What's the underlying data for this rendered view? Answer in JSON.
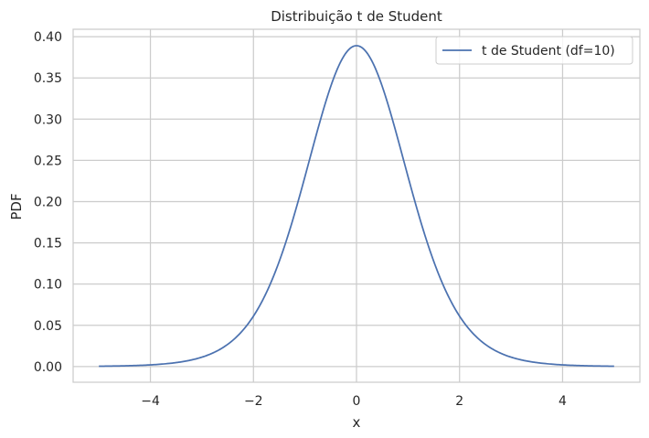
{
  "chart_data": {
    "type": "line",
    "title": "Distribuição t de Student",
    "xlabel": "x",
    "ylabel": "PDF",
    "xlim": [
      -5.5,
      5.5
    ],
    "ylim": [
      -0.019,
      0.409
    ],
    "xticks": [
      -4,
      -2,
      0,
      2,
      4
    ],
    "xtick_labels": [
      "−4",
      "−2",
      "0",
      "2",
      "4"
    ],
    "yticks": [
      0.0,
      0.05,
      0.1,
      0.15,
      0.2,
      0.25,
      0.3,
      0.35,
      0.4
    ],
    "ytick_labels": [
      "0.00",
      "0.05",
      "0.10",
      "0.15",
      "0.20",
      "0.25",
      "0.30",
      "0.35",
      "0.40"
    ],
    "grid": true,
    "legend_position": "top-right",
    "series": [
      {
        "name": "t de Student (df=10)",
        "color": "#4c72b0",
        "df": 10,
        "x": [
          -5,
          -4.5,
          -4,
          -3.5,
          -3,
          -2.5,
          -2,
          -1.5,
          -1,
          -0.5,
          0,
          0.5,
          1,
          1.5,
          2,
          2.5,
          3,
          3.5,
          4,
          4.5,
          5
        ],
        "y": [
          0.0004,
          0.001,
          0.002,
          0.0048,
          0.0114,
          0.0269,
          0.0611,
          0.1274,
          0.2304,
          0.3397,
          0.3891,
          0.3397,
          0.2304,
          0.1274,
          0.0611,
          0.0269,
          0.0114,
          0.0048,
          0.002,
          0.001,
          0.0004
        ]
      }
    ]
  }
}
